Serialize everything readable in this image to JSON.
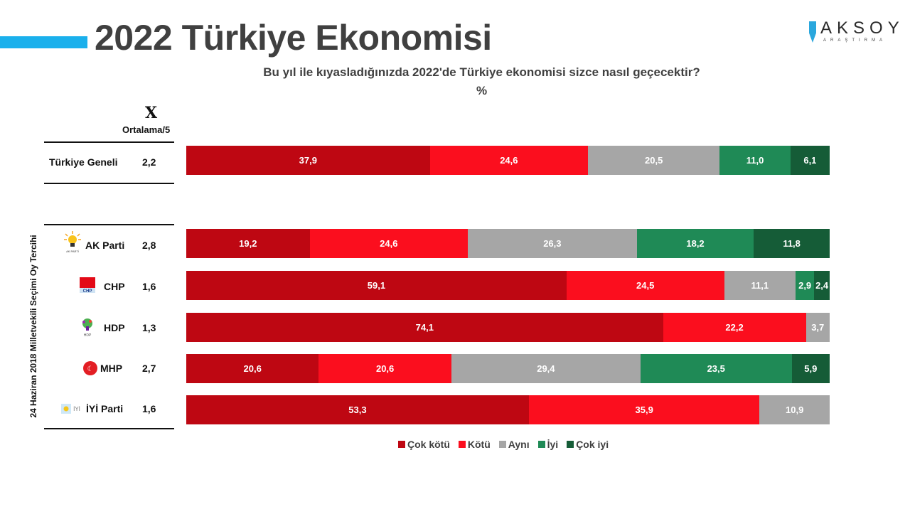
{
  "header": {
    "title": "2022 Türkiye Ekonomisi",
    "logo_name": "AKSOY",
    "logo_sub": "ARAŞTIRMA"
  },
  "question": "Bu yıl ile kıyasladığınızda 2022'de Türkiye ekonomisi sizce nasıl geçecektir?",
  "unit": "%",
  "avg_column": {
    "symbol": "X",
    "label": "Ortalama/5"
  },
  "group_label": "24 Haziran 2018 Milletvekili Seçimi Oy Tercihi",
  "colors": {
    "cok_kotu": "#be0712",
    "kotu": "#fb0e1e",
    "ayni": "#a6a6a6",
    "iyi": "#1f8a56",
    "cok_iyi": "#155c37",
    "accent": "#1ab0ec"
  },
  "legend": [
    "Çok kötü",
    "Kötü",
    "Aynı",
    "İyi",
    "Çok iyi"
  ],
  "rows": [
    {
      "label": "Türkiye Geneli",
      "avg": "2,2",
      "icon": "none",
      "values": [
        "37,9",
        "24,6",
        "20,5",
        "11,0",
        "6,1"
      ]
    },
    {
      "label": "AK Parti",
      "avg": "2,8",
      "icon": "ak-parti-bulb-logo",
      "values": [
        "19,2",
        "24,6",
        "26,3",
        "18,2",
        "11,8"
      ]
    },
    {
      "label": "CHP",
      "avg": "1,6",
      "icon": "chp-six-arrows-logo",
      "values": [
        "59,1",
        "24,5",
        "11,1",
        "2,9",
        "2,4"
      ]
    },
    {
      "label": "HDP",
      "avg": "1,3",
      "icon": "hdp-tree-logo",
      "values": [
        "74,1",
        "22,2",
        "3,7",
        "",
        ""
      ]
    },
    {
      "label": "MHP",
      "avg": "2,7",
      "icon": "mhp-crescents-logo",
      "values": [
        "20,6",
        "20,6",
        "29,4",
        "23,5",
        "5,9"
      ]
    },
    {
      "label": "İYİ Parti",
      "avg": "1,6",
      "icon": "iyi-parti-sun-logo",
      "values": [
        "53,3",
        "35,9",
        "10,9",
        "",
        ""
      ]
    }
  ],
  "chart_data": {
    "type": "bar",
    "orientation": "horizontal",
    "stacked": true,
    "title": "2022 Türkiye Ekonomisi",
    "subtitle": "Bu yıl ile kıyasladığınızda 2022'de Türkiye ekonomisi sizce nasıl geçecektir? %",
    "categories": [
      "Türkiye Geneli",
      "AK Parti",
      "CHP",
      "HDP",
      "MHP",
      "İYİ Parti"
    ],
    "series": [
      {
        "name": "Çok kötü",
        "color": "#be0712",
        "values": [
          37.9,
          19.2,
          59.1,
          74.1,
          20.6,
          53.3
        ]
      },
      {
        "name": "Kötü",
        "color": "#fb0e1e",
        "values": [
          24.6,
          24.6,
          24.5,
          22.2,
          20.6,
          35.9
        ]
      },
      {
        "name": "Aynı",
        "color": "#a6a6a6",
        "values": [
          20.5,
          26.3,
          11.1,
          3.7,
          29.4,
          10.9
        ]
      },
      {
        "name": "İyi",
        "color": "#1f8a56",
        "values": [
          11.0,
          18.2,
          2.9,
          0,
          23.5,
          0
        ]
      },
      {
        "name": "Çok iyi",
        "color": "#155c37",
        "values": [
          6.1,
          11.8,
          2.4,
          0,
          5.9,
          0
        ]
      }
    ],
    "averages_out_of_5": [
      2.2,
      2.8,
      1.6,
      1.3,
      2.7,
      1.6
    ],
    "xlabel": "",
    "ylabel": "24 Haziran 2018 Milletvekili Seçimi Oy Tercihi",
    "xlim": [
      0,
      100
    ],
    "grid": false,
    "legend_position": "bottom"
  }
}
